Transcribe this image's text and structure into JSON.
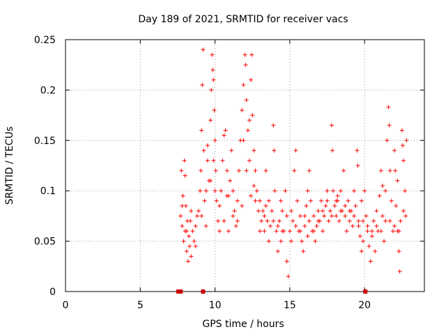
{
  "chart_data": {
    "type": "scatter",
    "title": "Day 189 of 2021, SRMTID for receiver vacs",
    "xlabel": "GPS time / hours",
    "ylabel": "SRMTID / TECUs",
    "xlim": [
      0,
      24
    ],
    "ylim": [
      0,
      0.25
    ],
    "xticks": [
      0,
      5,
      10,
      15,
      20
    ],
    "yticks": [
      0,
      0.05,
      0.1,
      0.15,
      0.2,
      0.25
    ],
    "xtick_labels": [
      "0",
      "5",
      "10",
      "15",
      "20"
    ],
    "ytick_labels": [
      "0",
      "0.05",
      "0.1",
      "0.15",
      "0.2",
      "0.25"
    ],
    "grid": true,
    "marker": "+",
    "color": "#ff0000",
    "series": [
      {
        "name": "SRMTID",
        "points": [
          [
            7.7,
            0.075
          ],
          [
            7.75,
            0.12
          ],
          [
            7.8,
            0.065
          ],
          [
            7.85,
            0.095
          ],
          [
            7.9,
            0.05
          ],
          [
            7.95,
            0.13
          ],
          [
            8.0,
            0.06
          ],
          [
            8.05,
            0.085
          ],
          [
            8.1,
            0.04
          ],
          [
            8.15,
            0.07
          ],
          [
            8.2,
            0.03
          ],
          [
            8.25,
            0.055
          ],
          [
            8.3,
            0.045
          ],
          [
            8.35,
            0.07
          ],
          [
            8.4,
            0.035
          ],
          [
            8.5,
            0.06
          ],
          [
            8.6,
            0.05
          ],
          [
            8.7,
            0.065
          ],
          [
            8.8,
            0.075
          ],
          [
            8.9,
            0.08
          ],
          [
            9.0,
            0.1
          ],
          [
            9.05,
            0.12
          ],
          [
            9.1,
            0.16
          ],
          [
            9.15,
            0.205
          ],
          [
            9.2,
            0.24
          ],
          [
            9.25,
            0.14
          ],
          [
            9.3,
            0.09
          ],
          [
            9.4,
            0.1
          ],
          [
            9.5,
            0.13
          ],
          [
            9.6,
            0.11
          ],
          [
            9.7,
            0.17
          ],
          [
            9.75,
            0.2
          ],
          [
            9.8,
            0.235
          ],
          [
            9.85,
            0.22
          ],
          [
            9.9,
            0.21
          ],
          [
            9.95,
            0.18
          ],
          [
            10.0,
            0.15
          ],
          [
            10.05,
            0.12
          ],
          [
            10.1,
            0.09
          ],
          [
            10.2,
            0.07
          ],
          [
            10.3,
            0.06
          ],
          [
            10.4,
            0.1
          ],
          [
            10.5,
            0.13
          ],
          [
            10.6,
            0.155
          ],
          [
            10.7,
            0.16
          ],
          [
            10.8,
            0.12
          ],
          [
            10.9,
            0.095
          ],
          [
            11.0,
            0.11
          ],
          [
            11.1,
            0.14
          ],
          [
            11.2,
            0.1
          ],
          [
            11.3,
            0.08
          ],
          [
            11.4,
            0.065
          ],
          [
            11.5,
            0.09
          ],
          [
            11.6,
            0.12
          ],
          [
            11.7,
            0.15
          ],
          [
            11.8,
            0.18
          ],
          [
            11.9,
            0.205
          ],
          [
            12.0,
            0.235
          ],
          [
            12.05,
            0.225
          ],
          [
            12.1,
            0.19
          ],
          [
            12.2,
            0.16
          ],
          [
            12.3,
            0.13
          ],
          [
            12.4,
            0.21
          ],
          [
            12.45,
            0.235
          ],
          [
            12.5,
            0.175
          ],
          [
            12.6,
            0.14
          ],
          [
            12.7,
            0.12
          ],
          [
            12.8,
            0.1
          ],
          [
            12.9,
            0.08
          ],
          [
            13.0,
            0.09
          ],
          [
            13.1,
            0.07
          ],
          [
            13.2,
            0.08
          ],
          [
            13.3,
            0.06
          ],
          [
            13.4,
            0.085
          ],
          [
            13.5,
            0.07
          ],
          [
            13.6,
            0.05
          ],
          [
            13.7,
            0.065
          ],
          [
            13.8,
            0.08
          ],
          [
            13.9,
            0.165
          ],
          [
            13.95,
            0.14
          ],
          [
            14.0,
            0.1
          ],
          [
            14.1,
            0.06
          ],
          [
            14.2,
            0.04
          ],
          [
            14.3,
            0.07
          ],
          [
            14.4,
            0.05
          ],
          [
            14.5,
            0.08
          ],
          [
            14.6,
            0.06
          ],
          [
            14.7,
            0.1
          ],
          [
            14.8,
            0.03
          ],
          [
            14.9,
            0.015
          ],
          [
            15.0,
            0.06
          ],
          [
            15.1,
            0.05
          ],
          [
            15.2,
            0.07
          ],
          [
            15.3,
            0.12
          ],
          [
            15.4,
            0.14
          ],
          [
            15.5,
            0.09
          ],
          [
            15.6,
            0.06
          ],
          [
            15.7,
            0.075
          ],
          [
            15.8,
            0.05
          ],
          [
            15.9,
            0.04
          ],
          [
            16.0,
            0.065
          ],
          [
            16.1,
            0.085
          ],
          [
            16.2,
            0.055
          ],
          [
            16.3,
            0.12
          ],
          [
            16.4,
            0.09
          ],
          [
            16.5,
            0.06
          ],
          [
            16.6,
            0.075
          ],
          [
            16.7,
            0.05
          ],
          [
            16.8,
            0.065
          ],
          [
            16.9,
            0.08
          ],
          [
            17.0,
            0.07
          ],
          [
            17.1,
            0.09
          ],
          [
            17.2,
            0.06
          ],
          [
            17.3,
            0.075
          ],
          [
            17.4,
            0.085
          ],
          [
            17.5,
            0.1
          ],
          [
            17.6,
            0.07
          ],
          [
            17.7,
            0.08
          ],
          [
            17.8,
            0.165
          ],
          [
            17.85,
            0.14
          ],
          [
            17.9,
            0.1
          ],
          [
            18.0,
            0.085
          ],
          [
            18.1,
            0.075
          ],
          [
            18.2,
            0.09
          ],
          [
            18.3,
            0.07
          ],
          [
            18.4,
            0.1
          ],
          [
            18.5,
            0.08
          ],
          [
            18.6,
            0.12
          ],
          [
            18.7,
            0.075
          ],
          [
            18.8,
            0.06
          ],
          [
            18.9,
            0.09
          ],
          [
            19.0,
            0.07
          ],
          [
            19.1,
            0.08
          ],
          [
            19.2,
            0.065
          ],
          [
            19.3,
            0.1
          ],
          [
            19.4,
            0.085
          ],
          [
            19.5,
            0.14
          ],
          [
            19.55,
            0.125
          ],
          [
            19.6,
            0.07
          ],
          [
            19.7,
            0.055
          ],
          [
            19.8,
            0.04
          ],
          [
            19.9,
            0.05
          ],
          [
            20.0,
            0.1
          ],
          [
            20.1,
            0.075
          ],
          [
            20.2,
            0.06
          ],
          [
            20.3,
            0.045
          ],
          [
            20.4,
            0.03
          ],
          [
            20.5,
            0.055
          ],
          [
            20.6,
            0.07
          ],
          [
            20.7,
            0.04
          ],
          [
            20.8,
            0.08
          ],
          [
            20.9,
            0.06
          ],
          [
            21.0,
            0.095
          ],
          [
            21.1,
            0.12
          ],
          [
            21.2,
            0.075
          ],
          [
            21.3,
            0.05
          ],
          [
            21.4,
            0.1
          ],
          [
            21.5,
            0.15
          ],
          [
            21.6,
            0.183
          ],
          [
            21.65,
            0.165
          ],
          [
            21.7,
            0.12
          ],
          [
            21.8,
            0.09
          ],
          [
            21.9,
            0.06
          ],
          [
            22.0,
            0.14
          ],
          [
            22.05,
            0.12
          ],
          [
            22.1,
            0.085
          ],
          [
            22.2,
            0.06
          ],
          [
            22.3,
            0.04
          ],
          [
            22.35,
            0.02
          ],
          [
            22.4,
            0.07
          ],
          [
            22.5,
            0.16
          ],
          [
            22.55,
            0.145
          ],
          [
            22.6,
            0.13
          ],
          [
            22.7,
            0.1
          ],
          [
            22.75,
            0.075
          ],
          [
            22.8,
            0.15
          ],
          [
            7.8,
            0.085
          ],
          [
            8.1,
            0.06
          ],
          [
            8.4,
            0.08
          ],
          [
            8.7,
            0.045
          ],
          [
            9.1,
            0.075
          ],
          [
            9.4,
            0.065
          ],
          [
            9.7,
            0.11
          ],
          [
            10.0,
            0.1
          ],
          [
            10.3,
            0.085
          ],
          [
            10.6,
            0.07
          ],
          [
            10.9,
            0.06
          ],
          [
            11.2,
            0.075
          ],
          [
            11.5,
            0.07
          ],
          [
            11.8,
            0.085
          ],
          [
            12.1,
            0.12
          ],
          [
            12.4,
            0.095
          ],
          [
            12.7,
            0.09
          ],
          [
            13.0,
            0.06
          ],
          [
            13.3,
            0.075
          ],
          [
            13.6,
            0.09
          ],
          [
            13.9,
            0.07
          ],
          [
            14.2,
            0.065
          ],
          [
            14.5,
            0.06
          ],
          [
            14.8,
            0.075
          ],
          [
            15.1,
            0.08
          ],
          [
            15.4,
            0.065
          ],
          [
            15.7,
            0.06
          ],
          [
            16.0,
            0.075
          ],
          [
            16.3,
            0.07
          ],
          [
            16.6,
            0.06
          ],
          [
            16.9,
            0.07
          ],
          [
            17.2,
            0.08
          ],
          [
            17.5,
            0.09
          ],
          [
            17.8,
            0.075
          ],
          [
            18.1,
            0.09
          ],
          [
            18.4,
            0.08
          ],
          [
            18.7,
            0.085
          ],
          [
            19.0,
            0.08
          ],
          [
            19.3,
            0.075
          ],
          [
            19.6,
            0.065
          ],
          [
            19.9,
            0.07
          ],
          [
            20.2,
            0.065
          ],
          [
            20.5,
            0.06
          ],
          [
            20.8,
            0.065
          ],
          [
            21.1,
            0.06
          ],
          [
            21.4,
            0.07
          ],
          [
            21.7,
            0.07
          ],
          [
            22.0,
            0.065
          ],
          [
            22.3,
            0.06
          ],
          [
            22.6,
            0.08
          ],
          [
            8.0,
            0.115
          ],
          [
            9.5,
            0.145
          ],
          [
            10.8,
            0.095
          ],
          [
            12.6,
            0.105
          ],
          [
            13.4,
            0.12
          ],
          [
            14.4,
            0.09
          ],
          [
            16.2,
            0.1
          ],
          [
            18.2,
            0.095
          ],
          [
            19.8,
            0.09
          ],
          [
            21.2,
            0.105
          ],
          [
            22.2,
            0.11
          ],
          [
            9.9,
            0.13
          ],
          [
            11.9,
            0.15
          ],
          [
            12.3,
            0.17
          ]
        ]
      }
    ],
    "axis_markers": {
      "points": [
        7.55,
        7.7,
        9.2,
        20.05
      ],
      "color": "#cc0000"
    }
  }
}
